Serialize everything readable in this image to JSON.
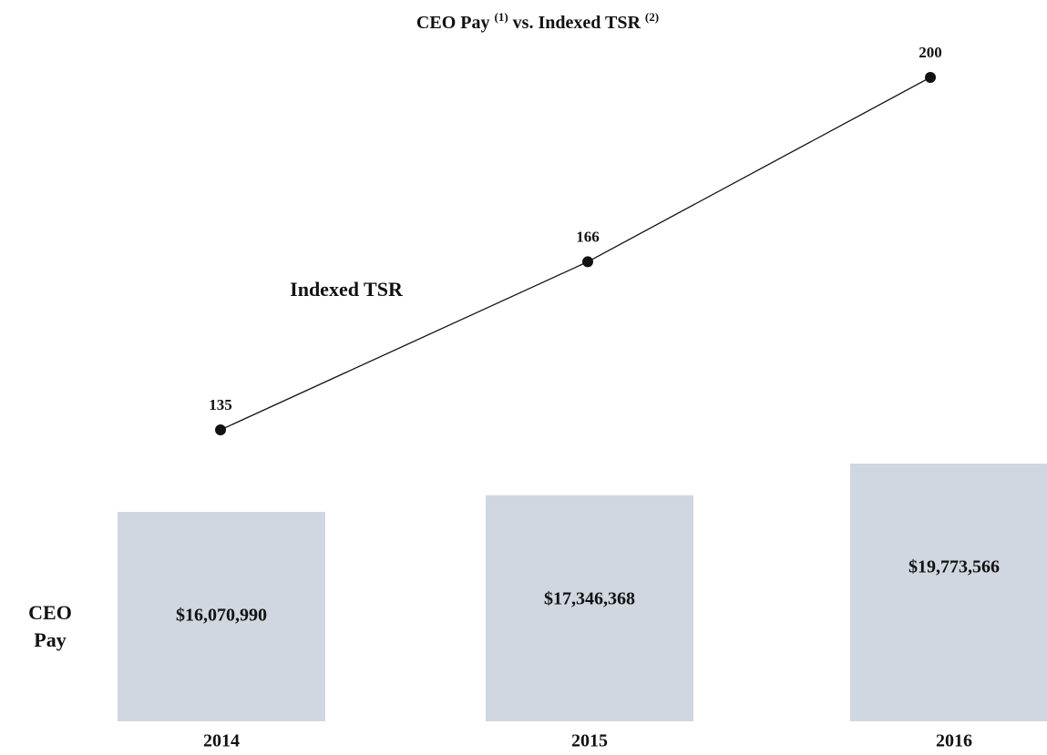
{
  "chart_data": {
    "type": "bar_line",
    "title": [
      "CEO Pay",
      "(1)",
      "vs. Indexed TSR",
      "(2)"
    ],
    "categories": [
      "2014",
      "2015",
      "2016"
    ],
    "series": [
      {
        "name": "CEO Pay",
        "type": "bar",
        "color": "#d0d7e0",
        "values": [
          16070990,
          17346368,
          19773566
        ],
        "value_labels": [
          "$16,070,990",
          "$17,346,368",
          "$19,773,566"
        ]
      },
      {
        "name": "Indexed TSR",
        "type": "line",
        "color": "#111111",
        "values": [
          135,
          166,
          200
        ]
      }
    ]
  }
}
